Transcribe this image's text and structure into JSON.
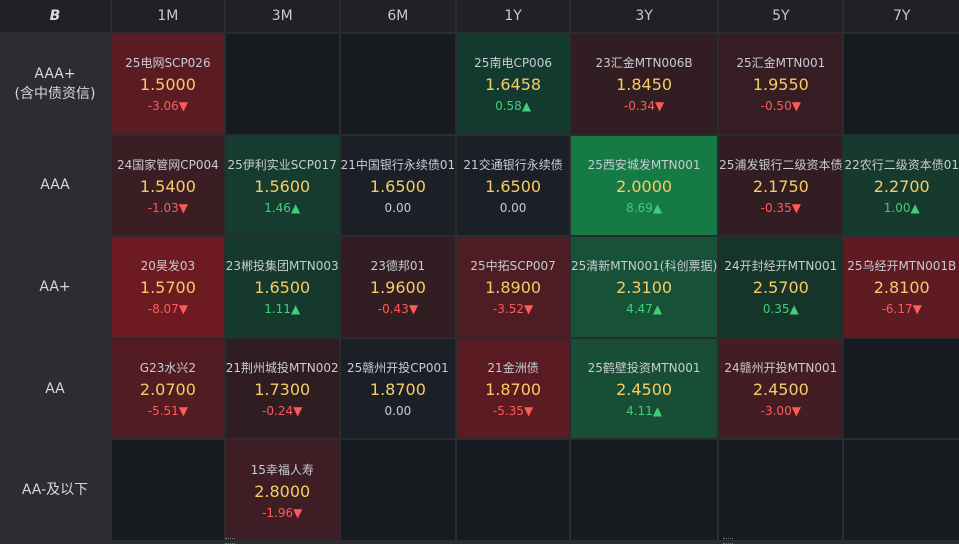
{
  "corner_icon": "logo-icon",
  "corner_glyph": "B",
  "tenors": [
    "1M",
    "3M",
    "6M",
    "1Y",
    "3Y",
    "5Y",
    "7Y"
  ],
  "rows": [
    {
      "label": "AAA+\n(含中债资信)",
      "cells": [
        {
          "name": "25电网SCP026",
          "rate": "1.5000",
          "change": "-3.06",
          "dir": "down",
          "bg": "#5a1c22"
        },
        null,
        null,
        {
          "name": "25南电CP006",
          "rate": "1.6458",
          "change": "0.58",
          "dir": "up",
          "bg": "#133a2e"
        },
        {
          "name": "23汇金MTN006B",
          "rate": "1.8450",
          "change": "-0.34",
          "dir": "down",
          "bg": "#311d22"
        },
        {
          "name": "25汇金MTN001",
          "rate": "1.9550",
          "change": "-0.50",
          "dir": "down",
          "bg": "#361d23"
        },
        null
      ]
    },
    {
      "label": "AAA",
      "cells": [
        {
          "name": "24国家管网CP004",
          "rate": "1.5400",
          "change": "-1.03",
          "dir": "down",
          "bg": "#3b1e24"
        },
        {
          "name": "25伊利实业SCP017",
          "rate": "1.5600",
          "change": "1.46",
          "dir": "up",
          "bg": "#163c2f"
        },
        {
          "name": "21中国银行永续债01",
          "rate": "1.6500",
          "change": "0.00",
          "dir": "flat",
          "bg": "#1b2027"
        },
        {
          "name": "21交通银行永续债",
          "rate": "1.6500",
          "change": "0.00",
          "dir": "flat",
          "bg": "#1b2027"
        },
        {
          "name": "25西安城发MTN001",
          "rate": "2.0000",
          "change": "8.69",
          "dir": "up",
          "bg": "#167a45"
        },
        {
          "name": "25浦发银行二级资本债",
          "rate": "2.1750",
          "change": "-0.35",
          "dir": "down",
          "bg": "#321d22"
        },
        {
          "name": "22农行二级资本债01",
          "rate": "2.2700",
          "change": "1.00",
          "dir": "up",
          "bg": "#163a2d"
        }
      ]
    },
    {
      "label": "AA+",
      "cells": [
        {
          "name": "20昊发03",
          "rate": "1.5700",
          "change": "-8.07",
          "dir": "down",
          "bg": "#6e1a21"
        },
        {
          "name": "23郴投集团MTN003",
          "rate": "1.6500",
          "change": "1.11",
          "dir": "up",
          "bg": "#15392c"
        },
        {
          "name": "23德邦01",
          "rate": "1.9600",
          "change": "-0.43",
          "dir": "down",
          "bg": "#321d22"
        },
        {
          "name": "25中拓SCP007",
          "rate": "1.8900",
          "change": "-3.52",
          "dir": "down",
          "bg": "#4e1d23"
        },
        {
          "name": "25清新MTN001(科创票据)",
          "rate": "2.3100",
          "change": "4.47",
          "dir": "up",
          "bg": "#175137"
        },
        {
          "name": "24开封经开MTN001",
          "rate": "2.5700",
          "change": "0.35",
          "dir": "up",
          "bg": "#15342a"
        },
        {
          "name": "25乌经开MTN001B",
          "rate": "2.8100",
          "change": "-6.17",
          "dir": "down",
          "bg": "#5e1b22"
        }
      ]
    },
    {
      "label": "AA",
      "cells": [
        {
          "name": "G23水兴2",
          "rate": "2.0700",
          "change": "-5.51",
          "dir": "down",
          "bg": "#531c22"
        },
        {
          "name": "21荆州城投MTN002",
          "rate": "1.7300",
          "change": "-0.24",
          "dir": "down",
          "bg": "#2f1d22"
        },
        {
          "name": "25赣州开投CP001",
          "rate": "1.8700",
          "change": "0.00",
          "dir": "flat",
          "bg": "#1b2027"
        },
        {
          "name": "21金洲债",
          "rate": "1.8700",
          "change": "-5.35",
          "dir": "down",
          "bg": "#5a1c22"
        },
        {
          "name": "25鹤壁投资MTN001",
          "rate": "2.4500",
          "change": "4.11",
          "dir": "up",
          "bg": "#174e35"
        },
        {
          "name": "24赣州开投MTN001",
          "rate": "2.4500",
          "change": "-3.00",
          "dir": "down",
          "bg": "#431d23"
        },
        null
      ]
    },
    {
      "label": "AA-及以下",
      "cells": [
        null,
        {
          "name": "15幸福人寿",
          "rate": "2.8000",
          "change": "-1.96",
          "dir": "down",
          "bg": "#3e1e24"
        },
        null,
        null,
        null,
        null,
        null
      ]
    }
  ],
  "arrows": {
    "up": "▲",
    "down": "▼",
    "flat": ""
  }
}
